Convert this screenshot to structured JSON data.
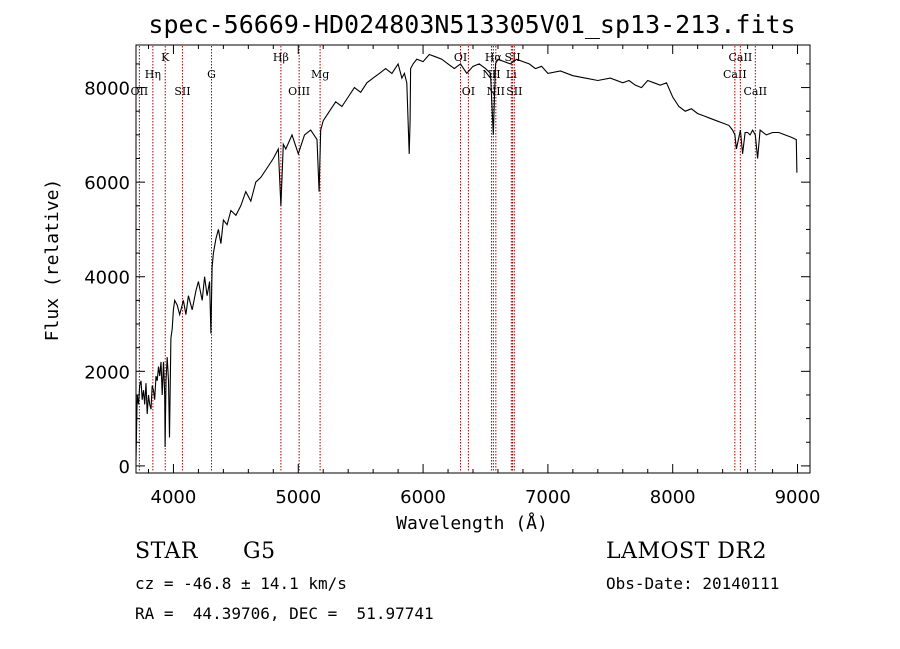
{
  "chart_data": {
    "type": "line",
    "title": "spec-56669-HD024803N513305V01_sp13-213.fits",
    "xlabel": "Wavelength (Å)",
    "ylabel": "Flux (relative)",
    "xlim": [
      3700,
      9100
    ],
    "ylim": [
      -150,
      8900
    ],
    "xticks": [
      4000,
      5000,
      6000,
      7000,
      8000,
      9000
    ],
    "yticks": [
      0,
      2000,
      4000,
      6000,
      8000
    ],
    "grid": false,
    "line_color": "#000000",
    "marker_color": "#b00000",
    "series": [
      {
        "x": [
          3700,
          3710,
          3720,
          3730,
          3740,
          3750,
          3760,
          3770,
          3780,
          3790,
          3800,
          3810,
          3820,
          3830,
          3840,
          3850,
          3860,
          3870,
          3880,
          3890,
          3900,
          3910,
          3920,
          3930,
          3933,
          3940,
          3950,
          3960,
          3968,
          3980,
          3990,
          4000,
          4010,
          4030,
          4050,
          4080,
          4100,
          4120,
          4150,
          4180,
          4200,
          4230,
          4250,
          4270,
          4290,
          4300,
          4310,
          4320,
          4340,
          4360,
          4380,
          4400,
          4430,
          4460,
          4500,
          4540,
          4580,
          4620,
          4660,
          4700,
          4750,
          4800,
          4840,
          4861,
          4880,
          4900,
          4950,
          5000,
          5050,
          5100,
          5150,
          5167,
          5180,
          5200,
          5250,
          5300,
          5350,
          5400,
          5450,
          5500,
          5550,
          5600,
          5650,
          5700,
          5750,
          5800,
          5830,
          5850,
          5870,
          5889,
          5896,
          5900,
          5920,
          5950,
          6000,
          6050,
          6100,
          6150,
          6200,
          6250,
          6300,
          6350,
          6400,
          6450,
          6500,
          6540,
          6563,
          6580,
          6600,
          6650,
          6700,
          6750,
          6800,
          6850,
          6900,
          6950,
          7000,
          7100,
          7200,
          7300,
          7400,
          7500,
          7600,
          7650,
          7700,
          7750,
          7800,
          7850,
          7900,
          7950,
          8000,
          8050,
          8100,
          8150,
          8200,
          8250,
          8300,
          8350,
          8400,
          8450,
          8480,
          8498,
          8510,
          8542,
          8560,
          8580,
          8600,
          8620,
          8640,
          8662,
          8680,
          8700,
          8750,
          8800,
          8850,
          8900,
          8950,
          8990,
          8995
        ],
        "y": [
          100,
          1500,
          1300,
          1700,
          1800,
          1400,
          1600,
          1300,
          1750,
          1100,
          1500,
          1300,
          1200,
          1700,
          1600,
          1400,
          1900,
          1800,
          2100,
          1900,
          2200,
          1500,
          2200,
          1500,
          400,
          1800,
          2300,
          1800,
          600,
          2700,
          2900,
          3300,
          3500,
          3400,
          3200,
          3500,
          3200,
          3600,
          3300,
          3700,
          3900,
          3500,
          4000,
          3600,
          3900,
          2800,
          4200,
          4500,
          4800,
          5000,
          4700,
          5200,
          5100,
          5400,
          5300,
          5500,
          5800,
          5600,
          6000,
          6100,
          6300,
          6500,
          6700,
          5500,
          6800,
          6700,
          7000,
          6600,
          7000,
          7100,
          6900,
          5800,
          7100,
          7300,
          7500,
          7700,
          7600,
          7800,
          8000,
          7900,
          8100,
          8200,
          8300,
          8400,
          8300,
          8500,
          8200,
          8300,
          8100,
          6600,
          7300,
          8400,
          8500,
          8600,
          8550,
          8700,
          8650,
          8600,
          8500,
          8400,
          8500,
          8300,
          8450,
          8500,
          8400,
          8300,
          7000,
          8500,
          8600,
          8550,
          8500,
          8600,
          8550,
          8500,
          8400,
          8450,
          8300,
          8350,
          8250,
          8200,
          8150,
          8200,
          8100,
          8150,
          8050,
          8000,
          8150,
          8100,
          8050,
          8100,
          7800,
          7600,
          7500,
          7550,
          7450,
          7400,
          7350,
          7300,
          7250,
          7200,
          7100,
          7000,
          6700,
          7100,
          6600,
          7050,
          7050,
          7000,
          7100,
          7000,
          6500,
          7100,
          7000,
          7050,
          7050,
          7000,
          6950,
          6900,
          6200
        ]
      }
    ],
    "lines": [
      {
        "label": "OII",
        "x": 3727,
        "tier": 3
      },
      {
        "label": "Hη",
        "x": 3835,
        "tier": 2
      },
      {
        "label": "K",
        "x": 3934,
        "tier": 1
      },
      {
        "label": "SII",
        "x": 4072,
        "tier": 3
      },
      {
        "label": "G",
        "x": 4305,
        "tier": 2
      },
      {
        "label": "Hβ",
        "x": 4861,
        "tier": 1
      },
      {
        "label": "OIII",
        "x": 5007,
        "tier": 3
      },
      {
        "label": "Mg",
        "x": 5175,
        "tier": 2
      },
      {
        "label": "OI",
        "x": 6300,
        "tier": 1
      },
      {
        "label": "OI",
        "x": 6363,
        "tier": 3
      },
      {
        "label": "NII",
        "x": 6548,
        "tier": 2
      },
      {
        "label": "NII",
        "x": 6583,
        "tier": 3
      },
      {
        "label": "Hα",
        "x": 6563,
        "tier": 1
      },
      {
        "label": "Li",
        "x": 6707,
        "tier": 2
      },
      {
        "label": "SII",
        "x": 6717,
        "tier": 1
      },
      {
        "label": "SII",
        "x": 6731,
        "tier": 3
      },
      {
        "label": "CaII",
        "x": 8498,
        "tier": 2
      },
      {
        "label": "CaII",
        "x": 8542,
        "tier": 1
      },
      {
        "label": "CaII",
        "x": 8662,
        "tier": 3
      }
    ]
  },
  "info": {
    "class": "STAR",
    "subclass": "G5",
    "survey": "LAMOST DR2",
    "cz": "cz = -46.8 ± 14.1 km/s",
    "obs_date": "Obs-Date: 20140111",
    "radec": "RA =  44.39706, DEC =  51.97741"
  }
}
